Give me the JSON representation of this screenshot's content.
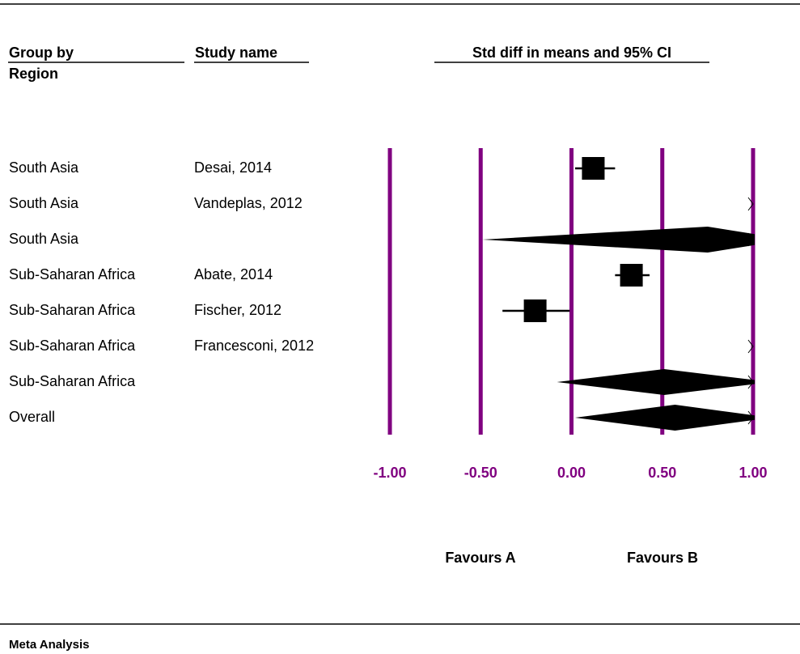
{
  "chart_data": {
    "type": "forest",
    "columns": [
      "Group by",
      "Study name"
    ],
    "group_label": "Region",
    "title": "Std diff in means and 95% CI",
    "groups": [
      "South Asia",
      "South Asia",
      "South Asia",
      "Sub-Saharan Africa",
      "Sub-Saharan Africa",
      "Sub-Saharan Africa",
      "Sub-Saharan Africa",
      "Overall"
    ],
    "studies": [
      "Desai, 2014",
      "Vandeplas, 2012",
      null,
      "Abate, 2014",
      "Fischer, 2012",
      "Francesconi, 2012",
      null,
      null
    ],
    "values": [
      0.12,
      2.0,
      0.75,
      0.33,
      -0.2,
      2.0,
      0.51,
      0.57
    ],
    "lower": [
      0.02,
      1.5,
      -0.49,
      0.24,
      -0.38,
      1.5,
      -0.08,
      0.02
    ],
    "upper": [
      0.24,
      2.5,
      1.2,
      0.43,
      -0.01,
      2.5,
      1.1,
      1.1
    ],
    "xlim": [
      -1,
      1
    ],
    "xticks": [
      {
        "value": -1,
        "label": "-1.00"
      },
      {
        "value": -0.5,
        "label": "-0.50"
      },
      {
        "value": 0,
        "label": "0.00"
      },
      {
        "value": 0.5,
        "label": "0.50"
      },
      {
        "value": 1,
        "label": "1.00"
      }
    ],
    "grid_color": "#800080",
    "left_label": "Favours A",
    "right_label": "Favours B",
    "footer": "Meta Analysis"
  }
}
